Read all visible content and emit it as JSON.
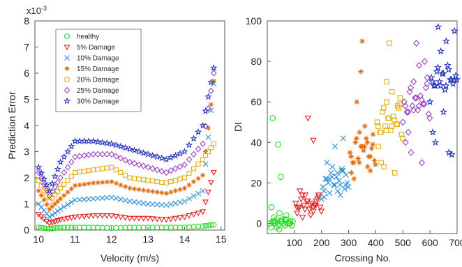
{
  "chart_data": [
    {
      "type": "scatter",
      "xlabel": "Velocity (m/s)",
      "ylabel": "Prediction Error",
      "y_exponent_label": "x10",
      "y_exponent_power": "-3",
      "xlim": [
        9.9,
        15.1
      ],
      "ylim": [
        0,
        8
      ],
      "x_ticks": [
        "10",
        "11",
        "12",
        "13",
        "14",
        "15"
      ],
      "y_ticks": [
        "0",
        "1",
        "2",
        "3",
        "4",
        "5",
        "6",
        "7",
        "8"
      ],
      "grid": false,
      "legend_position": "top-left",
      "series": [
        {
          "name": "healthy",
          "marker": "circle",
          "color": "#22dd22",
          "x": [
            10.0,
            10.3,
            10.6,
            11.0,
            11.5,
            12.0,
            12.5,
            13.0,
            13.5,
            14.0,
            14.5,
            14.8
          ],
          "values": [
            0.1,
            0.05,
            0.1,
            0.1,
            0.1,
            0.08,
            0.1,
            0.1,
            0.1,
            0.1,
            0.15,
            0.2
          ]
        },
        {
          "name": "5% Damage",
          "marker": "triangle-down",
          "color": "#dd2222",
          "x": [
            10.0,
            10.3,
            10.6,
            11.0,
            11.5,
            12.0,
            12.5,
            13.0,
            13.5,
            14.0,
            14.5,
            14.8
          ],
          "values": [
            0.6,
            0.25,
            0.4,
            0.5,
            0.55,
            0.55,
            0.45,
            0.45,
            0.4,
            0.5,
            0.7,
            2.2
          ]
        },
        {
          "name": "10% Damage",
          "marker": "x",
          "color": "#2a8fd6",
          "x": [
            10.0,
            10.3,
            10.6,
            11.0,
            11.5,
            12.0,
            12.5,
            13.0,
            13.5,
            14.0,
            14.5,
            14.8
          ],
          "values": [
            1.0,
            0.5,
            0.8,
            1.15,
            1.2,
            1.25,
            1.1,
            1.0,
            0.95,
            1.1,
            1.5,
            5.6
          ]
        },
        {
          "name": "15% Damage",
          "marker": "asterisk",
          "color": "#e06a10",
          "x": [
            10.0,
            10.3,
            10.6,
            11.0,
            11.5,
            12.0,
            12.5,
            13.0,
            13.5,
            14.0,
            14.5,
            14.8
          ],
          "values": [
            1.5,
            0.8,
            1.2,
            1.7,
            1.8,
            1.85,
            1.6,
            1.5,
            1.4,
            1.6,
            2.1,
            5.7
          ]
        },
        {
          "name": "20% Damage",
          "marker": "square",
          "color": "#e0b010",
          "x": [
            10.0,
            10.3,
            10.6,
            11.0,
            11.5,
            12.0,
            12.5,
            13.0,
            13.5,
            14.0,
            14.5,
            14.8
          ],
          "values": [
            1.9,
            1.1,
            1.6,
            2.2,
            2.3,
            2.4,
            2.0,
            1.9,
            1.8,
            2.0,
            2.7,
            3.3
          ]
        },
        {
          "name": "25% Damage",
          "marker": "diamond",
          "color": "#9b3fc0",
          "x": [
            10.0,
            10.3,
            10.6,
            11.0,
            11.5,
            12.0,
            12.5,
            13.0,
            13.5,
            14.0,
            14.5,
            14.8
          ],
          "values": [
            2.2,
            1.3,
            2.0,
            2.8,
            2.9,
            2.9,
            2.6,
            2.4,
            2.2,
            2.5,
            3.3,
            6.0
          ]
        },
        {
          "name": "30% Damage",
          "marker": "star",
          "color": "#2233bb",
          "x": [
            10.0,
            10.3,
            10.6,
            11.0,
            11.5,
            12.0,
            12.5,
            13.0,
            13.5,
            14.0,
            14.5,
            14.8
          ],
          "values": [
            2.4,
            1.5,
            2.6,
            3.4,
            3.4,
            3.3,
            3.1,
            2.9,
            2.7,
            3.0,
            4.0,
            6.2
          ]
        }
      ]
    },
    {
      "type": "scatter",
      "xlabel": "Crossing No.",
      "ylabel": "DI",
      "xlim": [
        0,
        700
      ],
      "ylim": [
        -5,
        100
      ],
      "x_ticks": [
        "100",
        "200",
        "300",
        "400",
        "500",
        "600",
        "700"
      ],
      "y_ticks": [
        "0",
        "20",
        "40",
        "60",
        "80",
        "100"
      ],
      "grid": false,
      "series": [
        {
          "marker": "circle",
          "color": "#22dd22",
          "x": [
            10,
            20,
            30,
            40,
            50,
            60,
            70,
            80,
            90,
            25,
            55,
            85,
            35,
            65,
            45,
            20,
            40,
            50,
            15,
            70
          ],
          "values": [
            0,
            1,
            0,
            -1,
            1,
            0,
            2,
            0,
            -1,
            3,
            2,
            1,
            -2,
            -1,
            5,
            52,
            39,
            23,
            8,
            4
          ]
        },
        {
          "marker": "triangle-down",
          "color": "#dd2222",
          "x": [
            105,
            115,
            125,
            135,
            145,
            155,
            165,
            175,
            185,
            195,
            110,
            140,
            170,
            190,
            130,
            160,
            120,
            180,
            150,
            170
          ],
          "values": [
            10,
            8,
            12,
            9,
            11,
            7,
            10,
            9,
            12,
            8,
            5,
            14,
            6,
            13,
            3,
            4,
            16,
            11,
            52,
            41
          ]
        },
        {
          "marker": "x",
          "color": "#2a8fd6",
          "x": [
            205,
            215,
            225,
            235,
            245,
            255,
            265,
            275,
            285,
            295,
            210,
            240,
            270,
            290,
            220,
            260,
            250,
            230,
            280,
            200,
            275
          ],
          "values": [
            18,
            22,
            20,
            25,
            19,
            23,
            21,
            26,
            17,
            20,
            13,
            28,
            14,
            24,
            30,
            16,
            38,
            15,
            42,
            12,
            27
          ]
        },
        {
          "marker": "asterisk",
          "color": "#e06a10",
          "x": [
            305,
            315,
            325,
            335,
            345,
            355,
            365,
            375,
            385,
            395,
            310,
            340,
            370,
            390,
            320,
            360,
            350,
            330,
            380,
            345
          ],
          "values": [
            35,
            30,
            40,
            32,
            38,
            36,
            42,
            33,
            37,
            31,
            25,
            45,
            28,
            44,
            22,
            48,
            90,
            60,
            26,
            75
          ]
        },
        {
          "marker": "square",
          "color": "#e0b010",
          "x": [
            405,
            415,
            425,
            435,
            445,
            455,
            465,
            475,
            485,
            495,
            410,
            440,
            470,
            490,
            420,
            460,
            450,
            430,
            480,
            440
          ],
          "values": [
            50,
            45,
            55,
            48,
            52,
            46,
            53,
            49,
            57,
            44,
            38,
            60,
            25,
            62,
            30,
            65,
            89,
            28,
            58,
            70
          ]
        },
        {
          "marker": "diamond",
          "color": "#9b3fc0",
          "x": [
            505,
            515,
            525,
            535,
            545,
            555,
            565,
            575,
            585,
            595,
            510,
            540,
            570,
            590,
            520,
            560,
            550,
            530,
            580,
            500
          ],
          "values": [
            60,
            55,
            65,
            58,
            62,
            56,
            63,
            59,
            67,
            54,
            40,
            70,
            30,
            72,
            45,
            78,
            89,
            35,
            80,
            50
          ]
        },
        {
          "marker": "star",
          "color": "#2233bb",
          "x": [
            605,
            615,
            625,
            635,
            645,
            655,
            665,
            675,
            685,
            695,
            610,
            640,
            670,
            690,
            620,
            660,
            650,
            630,
            680,
            600
          ],
          "values": [
            72,
            68,
            75,
            70,
            74,
            66,
            78,
            71,
            69,
            73,
            45,
            85,
            35,
            95,
            40,
            90,
            55,
            97,
            34,
            60
          ]
        }
      ]
    }
  ]
}
